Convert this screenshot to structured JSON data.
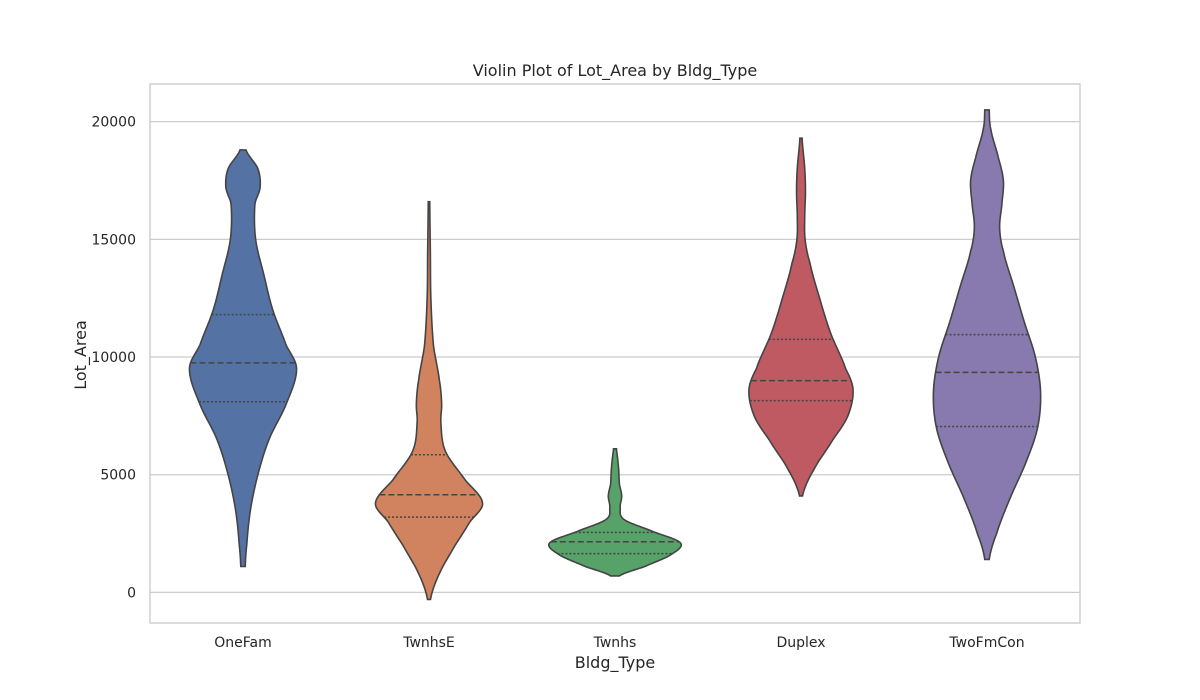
{
  "chart_data": {
    "type": "violin",
    "title": "Violin Plot of Lot_Area by Bldg_Type",
    "xlabel": "Bldg_Type",
    "ylabel": "Lot_Area",
    "ylim": [
      -1300,
      21600
    ],
    "yticks": [
      0,
      5000,
      10000,
      15000,
      20000
    ],
    "grid": "horizontal",
    "categories": [
      "OneFam",
      "TwnhsE",
      "Twnhs",
      "Duplex",
      "TwoFmCon"
    ],
    "series": [
      {
        "category": "OneFam",
        "color": "#5572A5",
        "min": 1100,
        "q1": 8100,
        "median": 9750,
        "q3": 11800,
        "max": 18800,
        "density": [
          [
            1100,
            0.03
          ],
          [
            2000,
            0.05
          ],
          [
            3500,
            0.1
          ],
          [
            5000,
            0.2
          ],
          [
            6500,
            0.35
          ],
          [
            8000,
            0.58
          ],
          [
            9500,
            0.72
          ],
          [
            10500,
            0.58
          ],
          [
            12000,
            0.4
          ],
          [
            13500,
            0.28
          ],
          [
            15000,
            0.17
          ],
          [
            16500,
            0.16
          ],
          [
            17200,
            0.23
          ],
          [
            18000,
            0.2
          ],
          [
            18800,
            0.04
          ]
        ]
      },
      {
        "category": "TwnhsE",
        "color": "#D0835E",
        "min": -300,
        "q1": 3200,
        "median": 4150,
        "q3": 5850,
        "max": 16600,
        "density": [
          [
            -300,
            0.02
          ],
          [
            800,
            0.14
          ],
          [
            2000,
            0.35
          ],
          [
            3000,
            0.55
          ],
          [
            3800,
            0.72
          ],
          [
            4800,
            0.48
          ],
          [
            6000,
            0.22
          ],
          [
            7200,
            0.16
          ],
          [
            8000,
            0.17
          ],
          [
            9000,
            0.14
          ],
          [
            10500,
            0.06
          ],
          [
            12500,
            0.025
          ],
          [
            14500,
            0.018
          ],
          [
            16600,
            0.01
          ]
        ]
      },
      {
        "category": "Twnhs",
        "color": "#56A268",
        "min": 700,
        "q1": 1650,
        "median": 2150,
        "q3": 2550,
        "max": 6100,
        "density": [
          [
            700,
            0.06
          ],
          [
            1100,
            0.4
          ],
          [
            1600,
            0.75
          ],
          [
            2100,
            0.88
          ],
          [
            2600,
            0.5
          ],
          [
            3100,
            0.12
          ],
          [
            3600,
            0.07
          ],
          [
            4100,
            0.09
          ],
          [
            4600,
            0.06
          ],
          [
            5200,
            0.05
          ],
          [
            5700,
            0.035
          ],
          [
            6100,
            0.02
          ]
        ]
      },
      {
        "category": "Duplex",
        "color": "#BF5A63",
        "min": 4100,
        "q1": 8150,
        "median": 9000,
        "q3": 10750,
        "max": 19300,
        "density": [
          [
            4100,
            0.02
          ],
          [
            5200,
            0.17
          ],
          [
            6500,
            0.43
          ],
          [
            7500,
            0.63
          ],
          [
            8600,
            0.7
          ],
          [
            9500,
            0.6
          ],
          [
            11000,
            0.4
          ],
          [
            12500,
            0.25
          ],
          [
            14000,
            0.12
          ],
          [
            15000,
            0.055
          ],
          [
            16000,
            0.05
          ],
          [
            17000,
            0.06
          ],
          [
            18000,
            0.05
          ],
          [
            19300,
            0.015
          ]
        ]
      },
      {
        "category": "TwoFmCon",
        "color": "#8879AE",
        "min": 1400,
        "q1": 7050,
        "median": 9350,
        "q3": 10950,
        "max": 20500,
        "density": [
          [
            1400,
            0.03
          ],
          [
            2500,
            0.13
          ],
          [
            4000,
            0.31
          ],
          [
            5500,
            0.52
          ],
          [
            7000,
            0.68
          ],
          [
            8500,
            0.72
          ],
          [
            10000,
            0.65
          ],
          [
            11500,
            0.5
          ],
          [
            13000,
            0.36
          ],
          [
            14500,
            0.22
          ],
          [
            15500,
            0.17
          ],
          [
            16500,
            0.2
          ],
          [
            17500,
            0.22
          ],
          [
            18500,
            0.15
          ],
          [
            19700,
            0.05
          ],
          [
            20500,
            0.03
          ]
        ]
      }
    ]
  }
}
